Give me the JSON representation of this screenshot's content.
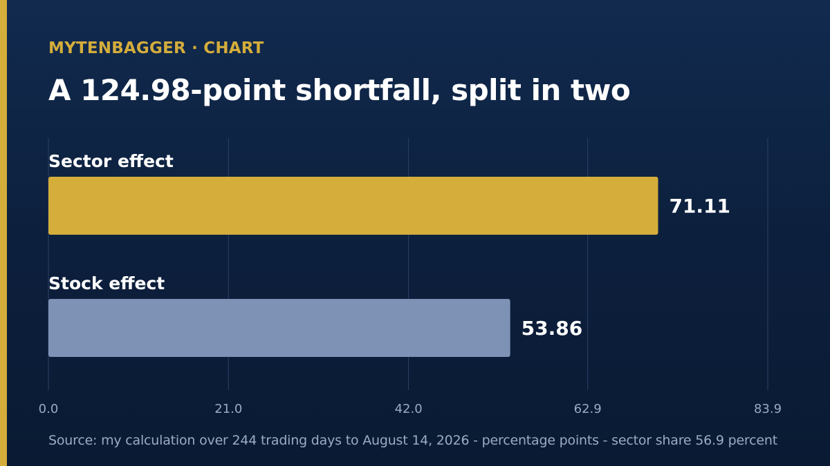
{
  "header": {
    "kicker": "MYTENBAGGER · CHART",
    "title": "A 124.98-point shortfall, split in two"
  },
  "footer": {
    "source": "Source: my calculation over 244 trading days to August 14, 2026 - percentage points - sector share 56.9 percent"
  },
  "colors": {
    "background": "#0c1f3c",
    "accent": "#d4ad3b",
    "sector_bar": "#d4ad3b",
    "stock_bar": "#7d92b5",
    "grid": "#2c4266",
    "tick_text": "#9aabc4",
    "value_text": "#ffffff"
  },
  "chart_data": {
    "type": "bar",
    "orientation": "horizontal",
    "title": "A 124.98-point shortfall, split in two",
    "xlabel": "",
    "ylabel": "",
    "categories": [
      "Sector effect",
      "Stock effect"
    ],
    "values": [
      71.11,
      53.86
    ],
    "value_labels": [
      "71.11",
      "53.86"
    ],
    "xlim": [
      0,
      83.9
    ],
    "xticks": [
      0,
      21,
      42,
      62.9,
      83.9
    ],
    "xtick_labels": [
      "0.0",
      "21.0",
      "42.0",
      "62.9",
      "83.9"
    ],
    "grid": true,
    "legend": "none"
  }
}
